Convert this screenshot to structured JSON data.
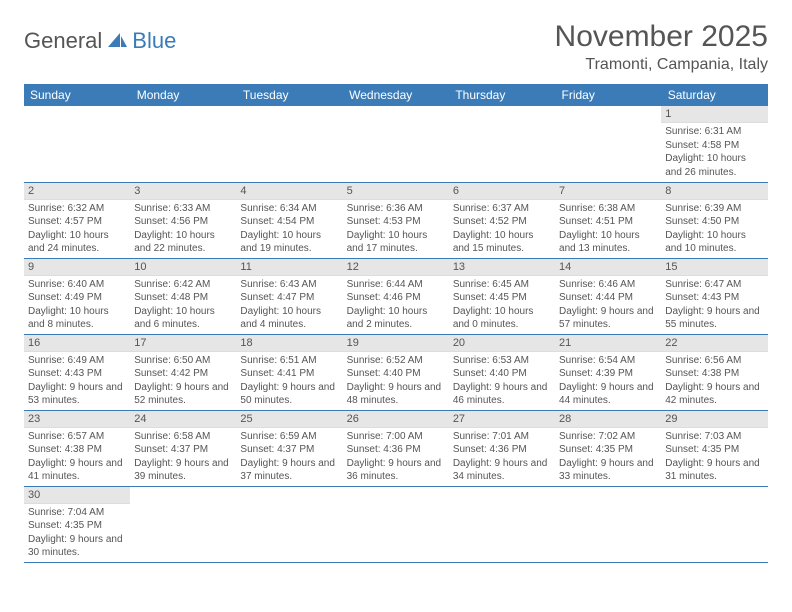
{
  "logo": {
    "text1": "General",
    "text2": "Blue"
  },
  "title": "November 2025",
  "location": "Tramonti, Campania, Italy",
  "weekdays": [
    "Sunday",
    "Monday",
    "Tuesday",
    "Wednesday",
    "Thursday",
    "Friday",
    "Saturday"
  ],
  "colors": {
    "header_bg": "#3b7cb8",
    "header_fg": "#ffffff",
    "daynum_bg": "#e6e6e6",
    "text": "#555555",
    "border": "#3b7cb8"
  },
  "fonts": {
    "title_size": 30,
    "location_size": 16,
    "weekday_size": 12,
    "daynum_size": 11,
    "body_size": 10
  },
  "first_weekday_index": 6,
  "days": [
    {
      "n": 1,
      "sunrise": "6:31 AM",
      "sunset": "4:58 PM",
      "daylight": "10 hours and 26 minutes."
    },
    {
      "n": 2,
      "sunrise": "6:32 AM",
      "sunset": "4:57 PM",
      "daylight": "10 hours and 24 minutes."
    },
    {
      "n": 3,
      "sunrise": "6:33 AM",
      "sunset": "4:56 PM",
      "daylight": "10 hours and 22 minutes."
    },
    {
      "n": 4,
      "sunrise": "6:34 AM",
      "sunset": "4:54 PM",
      "daylight": "10 hours and 19 minutes."
    },
    {
      "n": 5,
      "sunrise": "6:36 AM",
      "sunset": "4:53 PM",
      "daylight": "10 hours and 17 minutes."
    },
    {
      "n": 6,
      "sunrise": "6:37 AM",
      "sunset": "4:52 PM",
      "daylight": "10 hours and 15 minutes."
    },
    {
      "n": 7,
      "sunrise": "6:38 AM",
      "sunset": "4:51 PM",
      "daylight": "10 hours and 13 minutes."
    },
    {
      "n": 8,
      "sunrise": "6:39 AM",
      "sunset": "4:50 PM",
      "daylight": "10 hours and 10 minutes."
    },
    {
      "n": 9,
      "sunrise": "6:40 AM",
      "sunset": "4:49 PM",
      "daylight": "10 hours and 8 minutes."
    },
    {
      "n": 10,
      "sunrise": "6:42 AM",
      "sunset": "4:48 PM",
      "daylight": "10 hours and 6 minutes."
    },
    {
      "n": 11,
      "sunrise": "6:43 AM",
      "sunset": "4:47 PM",
      "daylight": "10 hours and 4 minutes."
    },
    {
      "n": 12,
      "sunrise": "6:44 AM",
      "sunset": "4:46 PM",
      "daylight": "10 hours and 2 minutes."
    },
    {
      "n": 13,
      "sunrise": "6:45 AM",
      "sunset": "4:45 PM",
      "daylight": "10 hours and 0 minutes."
    },
    {
      "n": 14,
      "sunrise": "6:46 AM",
      "sunset": "4:44 PM",
      "daylight": "9 hours and 57 minutes."
    },
    {
      "n": 15,
      "sunrise": "6:47 AM",
      "sunset": "4:43 PM",
      "daylight": "9 hours and 55 minutes."
    },
    {
      "n": 16,
      "sunrise": "6:49 AM",
      "sunset": "4:43 PM",
      "daylight": "9 hours and 53 minutes."
    },
    {
      "n": 17,
      "sunrise": "6:50 AM",
      "sunset": "4:42 PM",
      "daylight": "9 hours and 52 minutes."
    },
    {
      "n": 18,
      "sunrise": "6:51 AM",
      "sunset": "4:41 PM",
      "daylight": "9 hours and 50 minutes."
    },
    {
      "n": 19,
      "sunrise": "6:52 AM",
      "sunset": "4:40 PM",
      "daylight": "9 hours and 48 minutes."
    },
    {
      "n": 20,
      "sunrise": "6:53 AM",
      "sunset": "4:40 PM",
      "daylight": "9 hours and 46 minutes."
    },
    {
      "n": 21,
      "sunrise": "6:54 AM",
      "sunset": "4:39 PM",
      "daylight": "9 hours and 44 minutes."
    },
    {
      "n": 22,
      "sunrise": "6:56 AM",
      "sunset": "4:38 PM",
      "daylight": "9 hours and 42 minutes."
    },
    {
      "n": 23,
      "sunrise": "6:57 AM",
      "sunset": "4:38 PM",
      "daylight": "9 hours and 41 minutes."
    },
    {
      "n": 24,
      "sunrise": "6:58 AM",
      "sunset": "4:37 PM",
      "daylight": "9 hours and 39 minutes."
    },
    {
      "n": 25,
      "sunrise": "6:59 AM",
      "sunset": "4:37 PM",
      "daylight": "9 hours and 37 minutes."
    },
    {
      "n": 26,
      "sunrise": "7:00 AM",
      "sunset": "4:36 PM",
      "daylight": "9 hours and 36 minutes."
    },
    {
      "n": 27,
      "sunrise": "7:01 AM",
      "sunset": "4:36 PM",
      "daylight": "9 hours and 34 minutes."
    },
    {
      "n": 28,
      "sunrise": "7:02 AM",
      "sunset": "4:35 PM",
      "daylight": "9 hours and 33 minutes."
    },
    {
      "n": 29,
      "sunrise": "7:03 AM",
      "sunset": "4:35 PM",
      "daylight": "9 hours and 31 minutes."
    },
    {
      "n": 30,
      "sunrise": "7:04 AM",
      "sunset": "4:35 PM",
      "daylight": "9 hours and 30 minutes."
    }
  ],
  "labels": {
    "sunrise": "Sunrise:",
    "sunset": "Sunset:",
    "daylight": "Daylight:"
  }
}
